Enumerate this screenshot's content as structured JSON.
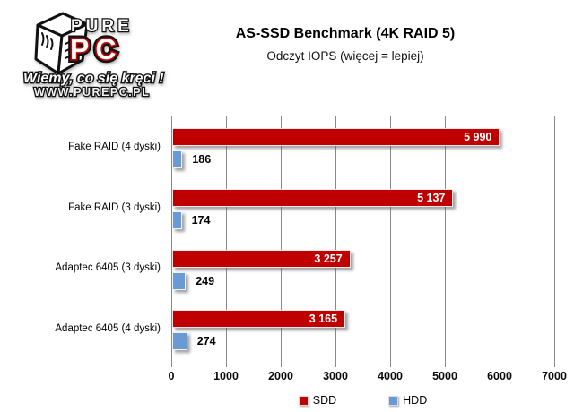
{
  "logo": {
    "brand_top": "PURE",
    "brand_bottom": "PC",
    "tagline": "Wiemy, co się kręci !",
    "website": "WWW.PUREPC.PL"
  },
  "header": {
    "title": "AS-SSD Benchmark (4K RAID 5)",
    "subtitle": "Odczyt IOPS (więcej = lepiej)"
  },
  "chart_data": {
    "type": "bar",
    "orientation": "horizontal",
    "title": "AS-SSD Benchmark (4K RAID 5)",
    "subtitle": "Odczyt IOPS (więcej = lepiej)",
    "categories": [
      "Fake RAID (4 dyski)",
      "Fake RAID (3 dyski)",
      "Adaptec 6405 (3 dyski)",
      "Adaptec 6405 (4 dyski)"
    ],
    "series": [
      {
        "name": "SDD",
        "color": "#c00000",
        "values": [
          5990,
          5137,
          3257,
          3165
        ],
        "labels": [
          "5 990",
          "5 137",
          "3 257",
          "3 165"
        ]
      },
      {
        "name": "HDD",
        "color": "#6a9ad4",
        "values": [
          186,
          174,
          249,
          274
        ],
        "labels": [
          "186",
          "174",
          "249",
          "274"
        ]
      }
    ],
    "xlim": [
      0,
      7000
    ],
    "x_ticks": [
      0,
      1000,
      2000,
      3000,
      4000,
      5000,
      6000,
      7000
    ],
    "grid": "vertical",
    "legend_position": "bottom",
    "gridline_color": "#8a8a8a",
    "value_label_color_ssd": "#ffffff",
    "value_label_color_hdd": "#000000"
  }
}
